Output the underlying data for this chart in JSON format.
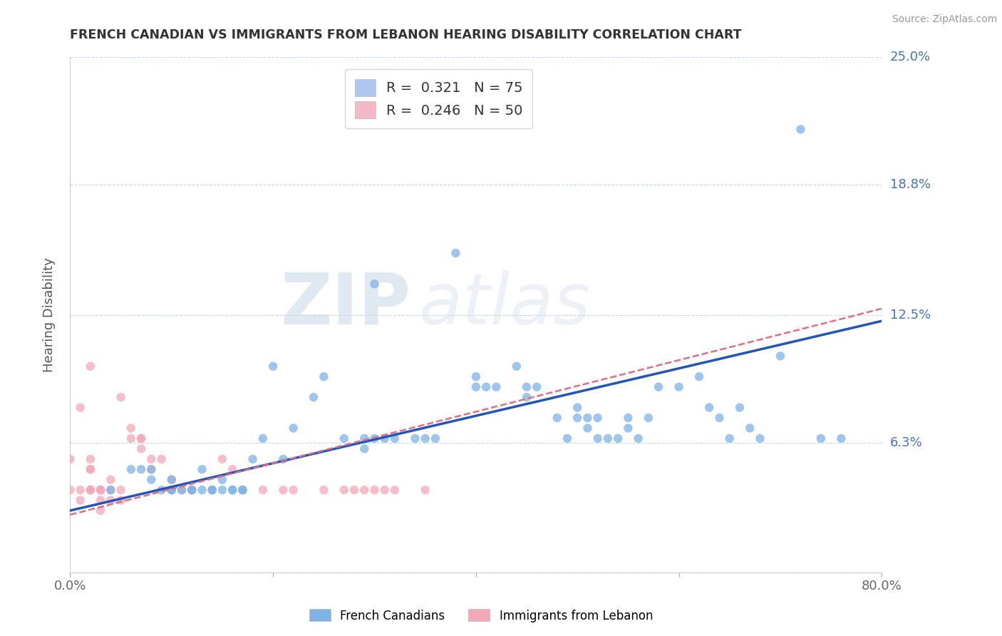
{
  "title": "FRENCH CANADIAN VS IMMIGRANTS FROM LEBANON HEARING DISABILITY CORRELATION CHART",
  "source": "Source: ZipAtlas.com",
  "ylabel": "Hearing Disability",
  "xlim": [
    0.0,
    0.8
  ],
  "ylim": [
    0.0,
    0.25
  ],
  "yticks": [
    0.0,
    0.063,
    0.125,
    0.188,
    0.25
  ],
  "ytick_labels": [
    "",
    "6.3%",
    "12.5%",
    "18.8%",
    "25.0%"
  ],
  "xtick_positions": [
    0.0,
    0.2,
    0.4,
    0.6,
    0.8
  ],
  "xtick_labels": [
    "0.0%",
    "",
    "",
    "",
    "80.0%"
  ],
  "legend1_label": "R =  0.321   N = 75",
  "legend2_label": "R =  0.246   N = 50",
  "legend_fc1": "#aec6f0",
  "legend_fc2": "#f4b8c8",
  "watermark_zip": "ZIP",
  "watermark_atlas": "atlas",
  "blue_color": "#2255BB",
  "pink_line_color": "#E07080",
  "blue_scatter_color": "#7EB3E8",
  "pink_scatter_color": "#F4A7B9",
  "blue_points_x": [
    0.38,
    0.3,
    0.4,
    0.4,
    0.41,
    0.42,
    0.44,
    0.45,
    0.45,
    0.46,
    0.48,
    0.49,
    0.5,
    0.5,
    0.51,
    0.51,
    0.52,
    0.52,
    0.53,
    0.54,
    0.55,
    0.55,
    0.56,
    0.57,
    0.58,
    0.6,
    0.62,
    0.63,
    0.64,
    0.65,
    0.66,
    0.67,
    0.68,
    0.7,
    0.72,
    0.74,
    0.76,
    0.04,
    0.06,
    0.07,
    0.08,
    0.08,
    0.09,
    0.1,
    0.1,
    0.1,
    0.11,
    0.12,
    0.12,
    0.13,
    0.13,
    0.14,
    0.14,
    0.15,
    0.15,
    0.16,
    0.16,
    0.17,
    0.17,
    0.18,
    0.19,
    0.2,
    0.21,
    0.22,
    0.24,
    0.25,
    0.27,
    0.29,
    0.29,
    0.3,
    0.31,
    0.32,
    0.34,
    0.35,
    0.36
  ],
  "blue_points_y": [
    0.155,
    0.14,
    0.095,
    0.09,
    0.09,
    0.09,
    0.1,
    0.085,
    0.09,
    0.09,
    0.075,
    0.065,
    0.075,
    0.08,
    0.07,
    0.075,
    0.075,
    0.065,
    0.065,
    0.065,
    0.07,
    0.075,
    0.065,
    0.075,
    0.09,
    0.09,
    0.095,
    0.08,
    0.075,
    0.065,
    0.08,
    0.07,
    0.065,
    0.105,
    0.215,
    0.065,
    0.065,
    0.04,
    0.05,
    0.05,
    0.045,
    0.05,
    0.04,
    0.04,
    0.04,
    0.045,
    0.04,
    0.04,
    0.04,
    0.05,
    0.04,
    0.04,
    0.04,
    0.045,
    0.04,
    0.04,
    0.04,
    0.04,
    0.04,
    0.055,
    0.065,
    0.1,
    0.055,
    0.07,
    0.085,
    0.095,
    0.065,
    0.06,
    0.065,
    0.065,
    0.065,
    0.065,
    0.065,
    0.065,
    0.065
  ],
  "pink_points_x": [
    0.0,
    0.0,
    0.01,
    0.01,
    0.01,
    0.02,
    0.02,
    0.02,
    0.02,
    0.02,
    0.02,
    0.02,
    0.03,
    0.03,
    0.03,
    0.03,
    0.03,
    0.04,
    0.04,
    0.04,
    0.05,
    0.05,
    0.05,
    0.06,
    0.06,
    0.07,
    0.07,
    0.07,
    0.08,
    0.08,
    0.09,
    0.1,
    0.1,
    0.11,
    0.12,
    0.14,
    0.15,
    0.16,
    0.17,
    0.19,
    0.21,
    0.22,
    0.25,
    0.27,
    0.28,
    0.29,
    0.3,
    0.31,
    0.32,
    0.35
  ],
  "pink_points_y": [
    0.04,
    0.055,
    0.035,
    0.04,
    0.08,
    0.04,
    0.04,
    0.04,
    0.05,
    0.05,
    0.055,
    0.1,
    0.03,
    0.04,
    0.04,
    0.04,
    0.035,
    0.035,
    0.04,
    0.045,
    0.035,
    0.04,
    0.085,
    0.065,
    0.07,
    0.06,
    0.065,
    0.065,
    0.05,
    0.055,
    0.055,
    0.045,
    0.04,
    0.04,
    0.04,
    0.04,
    0.055,
    0.05,
    0.04,
    0.04,
    0.04,
    0.04,
    0.04,
    0.04,
    0.04,
    0.04,
    0.04,
    0.04,
    0.04,
    0.04
  ],
  "blue_line_y_start": 0.03,
  "blue_line_y_end": 0.122,
  "pink_line_y_start": 0.028,
  "pink_line_y_end": 0.128
}
